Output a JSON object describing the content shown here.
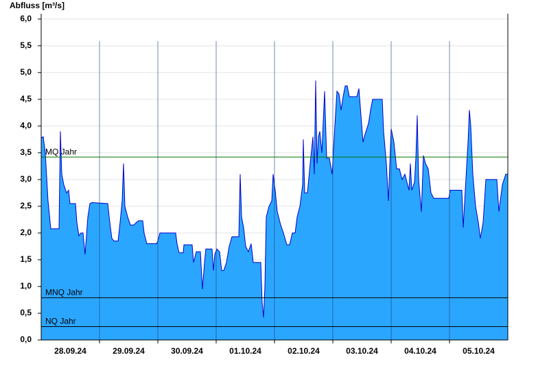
{
  "chart_data": {
    "type": "area",
    "title": "Abfluss [m³/s]",
    "xlim": [
      0,
      8
    ],
    "xticks": [
      {
        "value": 0.5,
        "label": "28.09.24"
      },
      {
        "value": 1.5,
        "label": "29.09.24"
      },
      {
        "value": 2.5,
        "label": "30.09.24"
      },
      {
        "value": 3.5,
        "label": "01.10.24"
      },
      {
        "value": 4.5,
        "label": "02.10.24"
      },
      {
        "value": 5.5,
        "label": "03.10.24"
      },
      {
        "value": 6.5,
        "label": "04.10.24"
      },
      {
        "value": 7.5,
        "label": "05.10.24"
      }
    ],
    "ylim": [
      0,
      6.1
    ],
    "yticks": [
      {
        "value": 0,
        "label": "0,0"
      },
      {
        "value": 0.5,
        "label": "0,5"
      },
      {
        "value": 1,
        "label": "1,0"
      },
      {
        "value": 1.5,
        "label": "1,5"
      },
      {
        "value": 2,
        "label": "2,0"
      },
      {
        "value": 2.5,
        "label": "2,5"
      },
      {
        "value": 3,
        "label": "3,0"
      },
      {
        "value": 3.5,
        "label": "3,5"
      },
      {
        "value": 4,
        "label": "4,0"
      },
      {
        "value": 4.5,
        "label": "4,5"
      },
      {
        "value": 5,
        "label": "5,0"
      },
      {
        "value": 5.5,
        "label": "5,5"
      },
      {
        "value": 6,
        "label": "6,0"
      }
    ],
    "grid": true,
    "color": "#2ba6ff",
    "line_color": "#0000cc",
    "x": [
      0,
      0.035,
      0.071,
      0.118,
      0.165,
      0.306,
      0.329,
      0.353,
      0.388,
      0.435,
      0.471,
      0.494,
      0.588,
      0.612,
      0.647,
      0.682,
      0.718,
      0.753,
      0.776,
      0.8,
      0.835,
      0.871,
      1.141,
      1.176,
      1.212,
      1.247,
      1.318,
      1.353,
      1.388,
      1.412,
      1.435,
      1.482,
      1.529,
      1.588,
      1.635,
      1.671,
      1.741,
      1.765,
      1.812,
      1.976,
      2.0,
      2.035,
      2.306,
      2.329,
      2.365,
      2.435,
      2.447,
      2.588,
      2.612,
      2.659,
      2.729,
      2.765,
      2.8,
      2.824,
      2.929,
      2.953,
      2.976,
      3.012,
      3.059,
      3.094,
      3.129,
      3.176,
      3.224,
      3.271,
      3.388,
      3.412,
      3.435,
      3.471,
      3.506,
      3.553,
      3.6,
      3.635,
      3.765,
      3.788,
      3.812,
      3.835,
      3.859,
      3.906,
      3.953,
      3.976,
      4.012,
      4.047,
      4.106,
      4.153,
      4.212,
      4.259,
      4.306,
      4.353,
      4.388,
      4.435,
      4.482,
      4.494,
      4.518,
      4.565,
      4.612,
      4.659,
      4.682,
      4.706,
      4.729,
      4.753,
      4.776,
      4.812,
      4.859,
      4.894,
      4.941,
      4.988,
      5.024,
      5.071,
      5.106,
      5.141,
      5.176,
      5.212,
      5.247,
      5.282,
      5.412,
      5.447,
      5.482,
      5.518,
      5.553,
      5.612,
      5.647,
      5.682,
      5.847,
      5.871,
      5.918,
      5.953,
      6.0,
      6.047,
      6.094,
      6.141,
      6.188,
      6.235,
      6.306,
      6.329,
      6.353,
      6.4,
      6.424,
      6.447,
      6.471,
      6.518,
      6.553,
      6.588,
      6.635,
      6.682,
      6.729,
      6.988,
      7.012,
      7.212,
      7.235,
      7.271,
      7.318,
      7.341,
      7.365,
      7.4,
      7.447,
      7.494,
      7.529,
      7.576,
      7.624,
      7.812,
      7.847,
      7.906,
      7.965,
      8.0
    ],
    "values": [
      3.78,
      3.8,
      3.5,
      2.6,
      2.08,
      2.08,
      3.9,
      3.1,
      2.9,
      2.75,
      2.8,
      2.55,
      2.55,
      2.2,
      1.95,
      2.0,
      2.0,
      1.6,
      1.95,
      2.3,
      2.55,
      2.57,
      2.55,
      2.2,
      1.9,
      1.85,
      1.85,
      2.2,
      2.6,
      3.3,
      2.5,
      2.3,
      2.15,
      2.15,
      2.2,
      2.23,
      2.23,
      2.0,
      1.8,
      1.8,
      1.85,
      2.0,
      2.0,
      1.8,
      1.63,
      1.63,
      1.78,
      1.78,
      1.45,
      1.65,
      1.65,
      0.95,
      1.45,
      1.7,
      1.7,
      1.3,
      1.6,
      1.7,
      1.65,
      1.3,
      1.3,
      1.45,
      1.75,
      1.93,
      1.93,
      3.1,
      2.3,
      2.1,
      1.75,
      1.65,
      1.8,
      1.45,
      1.45,
      0.7,
      0.42,
      1.0,
      2.3,
      2.5,
      2.6,
      3.1,
      2.8,
      2.4,
      2.15,
      2.0,
      1.78,
      1.78,
      2.0,
      2.0,
      2.3,
      2.5,
      2.9,
      3.75,
      2.75,
      2.75,
      3.3,
      3.8,
      3.1,
      4.85,
      3.3,
      3.8,
      3.9,
      3.5,
      4.65,
      3.4,
      3.4,
      3.1,
      3.8,
      4.65,
      4.6,
      4.3,
      4.55,
      4.75,
      4.75,
      4.55,
      4.55,
      4.7,
      4.2,
      3.7,
      3.85,
      4.05,
      4.3,
      4.5,
      4.5,
      3.9,
      3.3,
      2.6,
      3.95,
      3.7,
      3.2,
      3.2,
      3.0,
      3.1,
      2.8,
      3.3,
      2.8,
      2.95,
      3.4,
      4.2,
      3.0,
      2.4,
      3.45,
      3.3,
      3.2,
      2.75,
      2.65,
      2.65,
      2.8,
      2.8,
      2.1,
      2.8,
      3.7,
      4.3,
      4.0,
      3.1,
      2.5,
      2.2,
      1.9,
      2.2,
      3.0,
      3.0,
      2.4,
      2.9,
      3.1,
      3.1
    ],
    "reference_lines": [
      {
        "label": "MQ Jahr",
        "value": 3.42,
        "color": "#007000"
      },
      {
        "label": "MNQ Jahr",
        "value": 0.79,
        "color": "#000000"
      },
      {
        "label": "NQ Jahr",
        "value": 0.25,
        "color": "#000000"
      }
    ]
  }
}
